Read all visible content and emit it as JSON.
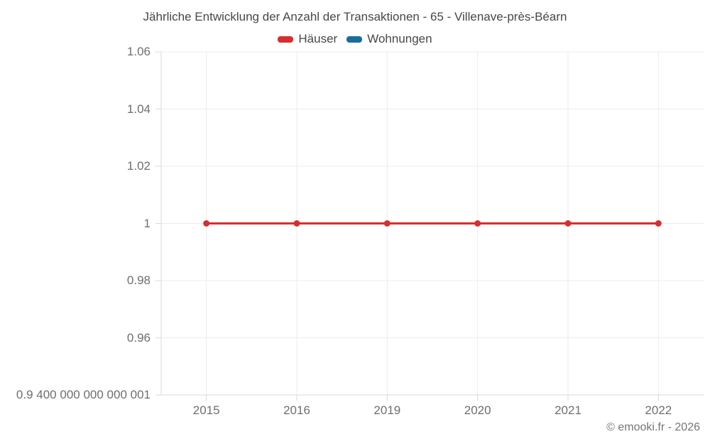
{
  "chart_data": {
    "type": "line",
    "title": "Jährliche Entwicklung der Anzahl der Transaktionen - 65 - Villenave-près-Béarn",
    "legend_position": "top",
    "grid": true,
    "categories": [
      "2015",
      "2016",
      "2019",
      "2020",
      "2021",
      "2022"
    ],
    "series": [
      {
        "name": "Häuser",
        "color": "#d62f2f",
        "values": [
          1,
          1,
          1,
          1,
          1,
          1
        ]
      },
      {
        "name": "Wohnungen",
        "color": "#1b6d9c",
        "values": []
      }
    ],
    "y_axis": {
      "min": 0.94,
      "max": 1.06,
      "ticks": [
        0.94,
        0.96,
        0.98,
        1,
        1.02,
        1.04,
        1.06
      ],
      "tick_labels": [
        "0.9 400 000 000 000 001",
        "0.96",
        "0.98",
        "1",
        "1.02",
        "1.04",
        "1.06"
      ]
    },
    "x_axis": {
      "tick_labels": [
        "2015",
        "2016",
        "2019",
        "2020",
        "2021",
        "2022"
      ]
    }
  },
  "attribution": "© emooki.fr - 2026",
  "colors": {
    "grid": "#ececec",
    "axis_border": "#d9d9d9",
    "tick_mark": "#d9d9d9",
    "title_text": "#474747",
    "tick_text": "#6e6e6e",
    "attribution_text": "#757575",
    "background": "#ffffff"
  }
}
